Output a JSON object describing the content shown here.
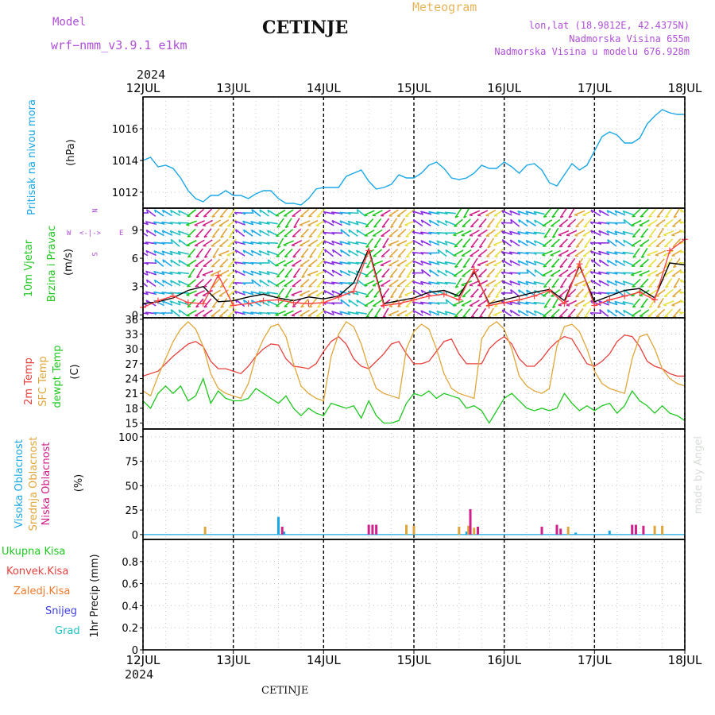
{
  "header": {
    "model_label": "Model",
    "model_name": "wrf−nmm_v3.9.1  e1km",
    "title": "CETINJE",
    "meteogram": "Meteogram",
    "coords": "lon,lat (18.9812E, 42.4375N)",
    "altitude": "Nadmorska Visina 655m",
    "model_altitude": "Nadmorska Visina u modelu 676.928m",
    "year_top": "2024",
    "year_bottom": "2024",
    "footer": "CETINJE",
    "credit": "made by Angel"
  },
  "colors": {
    "pressure": "#1aa7e6",
    "temp2m": "#e8403c",
    "sfc": "#e0a63a",
    "dewpt": "#1ec81e",
    "high_cloud": "#1aa7e6",
    "mid_cloud": "#e0a63a",
    "low_cloud": "#d0208a",
    "precip_total": "#1ec81e",
    "precip_conv": "#e8403c",
    "precip_frozen": "#f07a2a",
    "snow": "#4040e0",
    "graupel": "#20c0c0",
    "wind_speed": "#000000",
    "wind_gust": "#ff4444",
    "label_purple": "#b04fd8",
    "label_orange": "#e8b45a"
  },
  "axis_labels": {
    "pressure_name": "Pritisak na nivou mora",
    "pressure_unit": "(hPa)",
    "wind_name1": "10m Vjetar",
    "wind_name2": "Brzina i Pravac",
    "wind_unit": "(m/s)",
    "temp_name1": "2m Temp",
    "temp_name2": "SFC Temp",
    "temp_name3": "dewpt Temp",
    "temp_unit": "(C)",
    "cloud_name1": "Visoka Oblacnost",
    "cloud_name2": "Srednja Oblacnost",
    "cloud_name3": "Niska Oblacnost",
    "cloud_unit": "(%)",
    "precip_total": "Ukupna Kisa",
    "precip_conv": "Konvek.Kisa",
    "precip_frozen": "Zaledj.Kisa",
    "precip_snow": "Snijeg",
    "precip_graupel": "Grad",
    "precip_unit": "1hr Precip (mm)"
  },
  "compass": {
    "n": "N",
    "s": "S",
    "e": "E",
    "w": "W"
  },
  "chart_data": {
    "type": "line",
    "x_tick_labels": [
      "12JUL",
      "13JUL",
      "14JUL",
      "15JUL",
      "16JUL",
      "17JUL",
      "18JUL"
    ],
    "x_range_hours": [
      0,
      144
    ],
    "panels": [
      {
        "name": "pressure",
        "ylim": [
          1011,
          1018
        ],
        "yticks": [
          1012,
          1014,
          1016
        ],
        "grid": true,
        "series": [
          {
            "name": "Pritisak na nivou mora",
            "x": [
              0,
              2,
              4,
              6,
              8,
              10,
              12,
              14,
              16,
              18,
              20,
              22,
              24,
              26,
              28,
              30,
              32,
              34,
              36,
              38,
              40,
              42,
              44,
              46,
              48,
              50,
              52,
              54,
              56,
              58,
              60,
              62,
              64,
              66,
              68,
              70,
              72,
              74,
              76,
              78,
              80,
              82,
              84,
              86,
              88,
              90,
              92,
              94,
              96,
              98,
              100,
              102,
              104,
              106,
              108,
              110,
              112,
              114,
              116,
              118,
              120,
              122,
              124,
              126,
              128,
              130,
              132,
              134,
              136,
              138,
              140,
              142,
              144
            ],
            "values": [
              1014.0,
              1014.2,
              1013.6,
              1013.7,
              1013.5,
              1012.9,
              1012.1,
              1011.6,
              1011.4,
              1011.8,
              1011.8,
              1012.1,
              1011.8,
              1011.8,
              1011.6,
              1011.9,
              1012.1,
              1012.1,
              1011.6,
              1011.3,
              1011.3,
              1011.2,
              1011.6,
              1012.2,
              1012.3,
              1012.3,
              1012.3,
              1013.0,
              1013.2,
              1013.4,
              1012.7,
              1012.2,
              1012.3,
              1012.5,
              1013.1,
              1012.9,
              1012.9,
              1013.2,
              1013.7,
              1013.9,
              1013.5,
              1012.9,
              1012.8,
              1012.9,
              1013.2,
              1013.7,
              1013.5,
              1013.5,
              1013.9,
              1013.6,
              1013.2,
              1013.7,
              1013.8,
              1013.4,
              1012.6,
              1012.4,
              1013.1,
              1013.8,
              1013.4,
              1013.7,
              1014.6,
              1015.5,
              1015.8,
              1015.6,
              1015.1,
              1015.1,
              1015.4,
              1016.3,
              1016.8,
              1017.2,
              1017.0,
              1016.9,
              1016.9
            ]
          }
        ]
      },
      {
        "name": "wind",
        "ylim": [
          -0.3,
          11.3
        ],
        "yticks": [
          0,
          3,
          6,
          9
        ],
        "grid": true,
        "series": [
          {
            "name": "speed",
            "x": [
              0,
              4,
              8,
              12,
              16,
              20,
              24,
              28,
              32,
              36,
              40,
              44,
              48,
              52,
              56,
              60,
              64,
              68,
              72,
              76,
              80,
              84,
              88,
              92,
              96,
              100,
              104,
              108,
              112,
              116,
              120,
              124,
              128,
              132,
              136,
              140,
              144
            ],
            "values": [
              1.2,
              1.4,
              1.8,
              2.6,
              3.0,
              1.4,
              1.5,
              1.9,
              2.2,
              1.8,
              1.5,
              1.9,
              1.7,
              2.0,
              3.4,
              7.0,
              1.2,
              1.5,
              1.8,
              2.4,
              2.6,
              2.0,
              4.6,
              1.2,
              1.6,
              2.0,
              2.4,
              2.7,
              1.5,
              5.2,
              1.4,
              2.0,
              2.6,
              2.8,
              1.8,
              5.5,
              5.3
            ]
          },
          {
            "name": "gust",
            "x": [
              0,
              4,
              8,
              12,
              16,
              20,
              24,
              28,
              32,
              36,
              40,
              44,
              48,
              52,
              56,
              60,
              64,
              68,
              72,
              76,
              80,
              84,
              88,
              92,
              96,
              100,
              104,
              108,
              112,
              116,
              120,
              124,
              128,
              132,
              136,
              140,
              144
            ],
            "values": [
              0.8,
              1.5,
              2.0,
              1.3,
              1.2,
              4.2,
              1.0,
              1.2,
              1.5,
              1.6,
              1.3,
              1.2,
              1.3,
              1.9,
              2.5,
              6.8,
              1.0,
              1.2,
              1.6,
              2.0,
              2.2,
              1.6,
              4.8,
              1.0,
              1.3,
              1.6,
              2.0,
              2.6,
              1.2,
              5.4,
              1.0,
              1.6,
              2.0,
              2.4,
              1.6,
              6.8,
              8.0
            ]
          }
        ]
      },
      {
        "name": "temperature",
        "ylim": [
          13.8,
          36.3
        ],
        "yticks": [
          15,
          18,
          21,
          24,
          27,
          30,
          33,
          36
        ],
        "grid": true,
        "series": [
          {
            "name": "2m Temp",
            "x": [
              0,
              4,
              8,
              12,
              14,
              16,
              18,
              20,
              22,
              24,
              26,
              28,
              30,
              32,
              34,
              36,
              38,
              40,
              42,
              44,
              46,
              48,
              50,
              52,
              54,
              56,
              58,
              60,
              62,
              64,
              66,
              68,
              70,
              72,
              74,
              76,
              78,
              80,
              82,
              84,
              86,
              88,
              90,
              92,
              94,
              96,
              98,
              100,
              102,
              104,
              106,
              108,
              110,
              112,
              114,
              116,
              118,
              120,
              122,
              124,
              126,
              128,
              130,
              132,
              134,
              136,
              138,
              140,
              142,
              144
            ],
            "values": [
              24.5,
              25.5,
              28.5,
              31.0,
              31.5,
              30.5,
              27.5,
              26.0,
              26.0,
              25.5,
              25.0,
              26.5,
              28.5,
              30.0,
              31.0,
              30.8,
              28.0,
              26.5,
              26.3,
              26.0,
              27.0,
              29.5,
              31.5,
              32.5,
              31.0,
              28.0,
              26.5,
              26.0,
              27.5,
              29.0,
              31.0,
              31.5,
              29.0,
              27.0,
              27.0,
              27.5,
              29.5,
              31.5,
              32.0,
              29.0,
              27.0,
              27.0,
              27.0,
              30.0,
              31.5,
              32.5,
              31.0,
              28.0,
              26.5,
              26.5,
              28.0,
              30.0,
              31.5,
              32.5,
              32.0,
              29.5,
              27.0,
              26.5,
              27.5,
              29.0,
              31.5,
              32.8,
              32.5,
              30.5,
              27.5,
              26.5,
              26.0,
              25.0,
              24.5,
              24.5
            ]
          },
          {
            "name": "SFC Temp",
            "x": [
              0,
              2,
              4,
              6,
              8,
              10,
              12,
              14,
              16,
              18,
              20,
              22,
              24,
              26,
              28,
              30,
              32,
              34,
              36,
              38,
              40,
              42,
              44,
              46,
              48,
              50,
              52,
              54,
              56,
              58,
              60,
              62,
              64,
              66,
              68,
              70,
              72,
              74,
              76,
              78,
              80,
              82,
              84,
              86,
              88,
              90,
              92,
              94,
              96,
              98,
              100,
              102,
              104,
              106,
              108,
              110,
              112,
              114,
              116,
              118,
              120,
              122,
              124,
              126,
              128,
              130,
              132,
              134,
              136,
              138,
              140,
              142,
              144
            ],
            "values": [
              21.5,
              20.5,
              24.5,
              28.0,
              31.5,
              34.0,
              35.5,
              34.0,
              30.5,
              25.0,
              22.0,
              21.0,
              20.5,
              20.0,
              23.0,
              28.5,
              32.0,
              34.5,
              35.0,
              32.5,
              27.0,
              22.5,
              21.0,
              20.0,
              19.5,
              28.5,
              33.0,
              35.5,
              34.5,
              31.0,
              26.0,
              22.0,
              21.0,
              20.5,
              20.0,
              30.0,
              33.5,
              35.0,
              34.0,
              30.0,
              25.0,
              22.0,
              21.0,
              20.5,
              20.0,
              32.0,
              34.5,
              35.5,
              34.0,
              30.0,
              24.5,
              22.5,
              21.5,
              21.0,
              22.0,
              30.5,
              34.5,
              35.0,
              33.5,
              30.0,
              25.5,
              23.0,
              22.0,
              21.5,
              21.0,
              28.0,
              32.5,
              33.0,
              30.0,
              26.0,
              24.0,
              23.0,
              22.5
            ]
          },
          {
            "name": "dewpt Temp",
            "x": [
              0,
              2,
              4,
              6,
              8,
              10,
              12,
              14,
              16,
              18,
              20,
              22,
              24,
              26,
              28,
              30,
              32,
              34,
              36,
              38,
              40,
              42,
              44,
              46,
              48,
              50,
              52,
              54,
              56,
              58,
              60,
              62,
              64,
              66,
              68,
              70,
              72,
              74,
              76,
              78,
              80,
              82,
              84,
              86,
              88,
              90,
              92,
              94,
              96,
              98,
              100,
              102,
              104,
              106,
              108,
              110,
              112,
              114,
              116,
              118,
              120,
              122,
              124,
              126,
              128,
              130,
              132,
              134,
              136,
              138,
              140,
              142,
              144
            ],
            "values": [
              19.5,
              18.0,
              21.0,
              22.5,
              21.0,
              22.5,
              19.5,
              20.5,
              24.0,
              19.0,
              21.5,
              20.0,
              19.5,
              19.5,
              20.0,
              22.0,
              21.0,
              20.0,
              19.0,
              20.5,
              18.0,
              16.5,
              18.0,
              17.0,
              16.5,
              19.0,
              18.5,
              18.0,
              18.5,
              16.0,
              19.5,
              16.5,
              15.0,
              15.0,
              15.5,
              19.0,
              21.0,
              20.5,
              21.5,
              20.0,
              21.0,
              20.5,
              20.0,
              18.0,
              18.5,
              17.5,
              15.0,
              17.5,
              20.0,
              21.0,
              19.5,
              18.0,
              17.5,
              18.0,
              17.5,
              18.0,
              21.0,
              19.0,
              17.5,
              18.5,
              17.5,
              18.5,
              19.0,
              17.0,
              18.5,
              21.5,
              19.5,
              18.5,
              17.0,
              18.5,
              17.0,
              16.5,
              15.5
            ]
          }
        ]
      },
      {
        "name": "clouds",
        "ylim": [
          -5,
          108
        ],
        "yticks": [
          0,
          25,
          50,
          75,
          100
        ],
        "grid": true,
        "type": "bar",
        "series": [
          {
            "name": "Visoka Oblacnost",
            "x": [
              36,
              37.5,
              86,
              115,
              124
            ],
            "values": [
              18,
              3,
              3,
              2,
              4
            ]
          },
          {
            "name": "Srednja Oblacnost",
            "x": [
              16.5,
              70,
              72,
              84,
              86.5,
              88,
              113,
              136,
              138
            ],
            "values": [
              8,
              10,
              9,
              8,
              9,
              7,
              8,
              9,
              9
            ]
          },
          {
            "name": "Niska Oblacnost",
            "x": [
              37,
              60,
              61,
              62,
              87,
              89,
              106,
              110,
              111,
              130,
              131,
              133
            ],
            "values": [
              8,
              10,
              10,
              10,
              26,
              8,
              8,
              10,
              6,
              10,
              10,
              9
            ]
          }
        ]
      },
      {
        "name": "precipitation",
        "ylim": [
          0,
          1.0
        ],
        "yticks": [
          0,
          0.2,
          0.4,
          0.6,
          0.8
        ],
        "grid": true,
        "series": [
          {
            "name": "Ukupna Kisa",
            "values": []
          },
          {
            "name": "Konvek.Kisa",
            "values": []
          },
          {
            "name": "Zaledj.Kisa",
            "values": []
          },
          {
            "name": "Snijeg",
            "values": []
          },
          {
            "name": "Grad",
            "values": []
          }
        ]
      }
    ]
  }
}
